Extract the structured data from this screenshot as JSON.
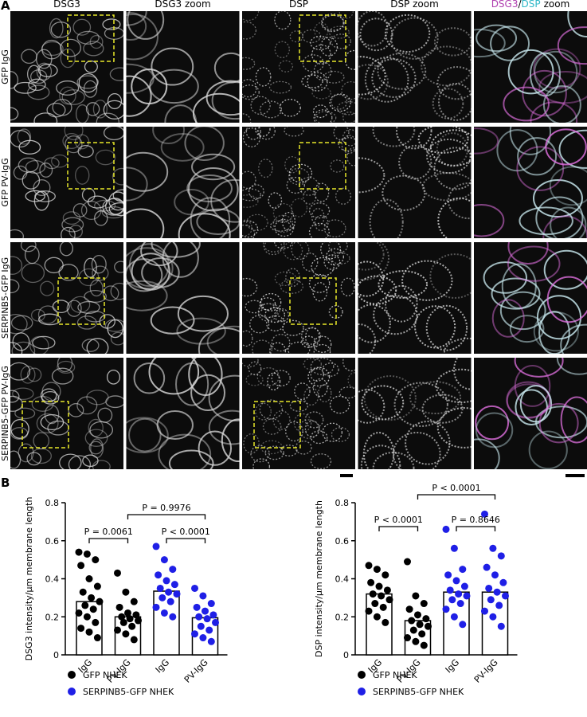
{
  "panel_labels": [
    "A",
    "B"
  ],
  "panel_a": {
    "column_headers": [
      "DSG3",
      "DSG3 zoom",
      "DSP",
      "DSP zoom"
    ],
    "merge_header": [
      "DSG3",
      "/",
      "DSP",
      "zoom"
    ],
    "row_labels": [
      "GFP IgG",
      "GFP PV-IgG",
      "SERPINB5-GFP IgG",
      "SERPINB5-GFP PV-IgG"
    ]
  },
  "chart_data": [
    {
      "type": "bar",
      "y_label": "DSG3 intensity/μm membrane length",
      "categories": [
        "IgG",
        "PV-IgG",
        "IgG",
        "PV-IgG"
      ],
      "ylim": [
        0,
        0.8
      ],
      "yticks": [
        0,
        0.2,
        0.4,
        0.6,
        0.8
      ],
      "series": [
        {
          "name": "GFP NHEK",
          "color": "#000000",
          "values": [
            0.28,
            0.2,
            null,
            null
          ],
          "points": [
            [
              0.54,
              0.53,
              0.5,
              0.47,
              0.4,
              0.36,
              0.33,
              0.3,
              0.28,
              0.26,
              0.24,
              0.22,
              0.2,
              0.17,
              0.14,
              0.12,
              0.09
            ],
            [
              0.43,
              0.33,
              0.28,
              0.25,
              0.22,
              0.21,
              0.2,
              0.19,
              0.18,
              0.17,
              0.15,
              0.13,
              0.11,
              0.08
            ],
            null,
            null
          ]
        },
        {
          "name": "SERPINB5-GFP NHEK",
          "color": "#1f1fe6",
          "values": [
            null,
            null,
            0.335,
            0.195
          ],
          "points": [
            null,
            null,
            [
              0.57,
              0.5,
              0.45,
              0.42,
              0.39,
              0.37,
              0.35,
              0.33,
              0.32,
              0.3,
              0.28,
              0.25,
              0.22,
              0.2
            ],
            [
              0.35,
              0.31,
              0.27,
              0.25,
              0.23,
              0.21,
              0.2,
              0.19,
              0.17,
              0.15,
              0.13,
              0.11,
              0.09,
              0.07
            ]
          ]
        }
      ],
      "comparisons": [
        {
          "between": [
            0,
            1
          ],
          "label": "P = 0.0061"
        },
        {
          "between": [
            2,
            3
          ],
          "label": "P < 0.0001"
        },
        {
          "between": [
            1,
            3
          ],
          "label": "P = 0.9976"
        }
      ]
    },
    {
      "type": "bar",
      "y_label": "DSP intensity/μm membrane length",
      "categories": [
        "IgG",
        "PV-IgG",
        "IgG",
        "PV-IgG"
      ],
      "ylim": [
        0,
        0.8
      ],
      "yticks": [
        0,
        0.2,
        0.4,
        0.6,
        0.8
      ],
      "series": [
        {
          "name": "GFP NHEK",
          "color": "#000000",
          "values": [
            0.32,
            0.18,
            null,
            null
          ],
          "points": [
            [
              0.47,
              0.45,
              0.42,
              0.38,
              0.36,
              0.34,
              0.32,
              0.31,
              0.29,
              0.27,
              0.25,
              0.23,
              0.2,
              0.17
            ],
            [
              0.49,
              0.31,
              0.27,
              0.24,
              0.21,
              0.19,
              0.18,
              0.16,
              0.15,
              0.13,
              0.11,
              0.09,
              0.07,
              0.05
            ],
            null,
            null
          ]
        },
        {
          "name": "SERPINB5-GFP NHEK",
          "color": "#1f1fe6",
          "values": [
            null,
            null,
            0.33,
            0.33
          ],
          "points": [
            null,
            null,
            [
              0.66,
              0.56,
              0.45,
              0.42,
              0.39,
              0.36,
              0.34,
              0.32,
              0.31,
              0.29,
              0.27,
              0.24,
              0.2,
              0.16
            ],
            [
              0.74,
              0.56,
              0.52,
              0.46,
              0.42,
              0.38,
              0.35,
              0.33,
              0.31,
              0.29,
              0.26,
              0.23,
              0.2,
              0.15
            ]
          ]
        }
      ],
      "comparisons": [
        {
          "between": [
            0,
            1
          ],
          "label": "P < 0.0001"
        },
        {
          "between": [
            2,
            3
          ],
          "label": "P = 0.8646"
        },
        {
          "between": [
            1,
            3
          ],
          "label": "P < 0.0001"
        }
      ]
    }
  ]
}
